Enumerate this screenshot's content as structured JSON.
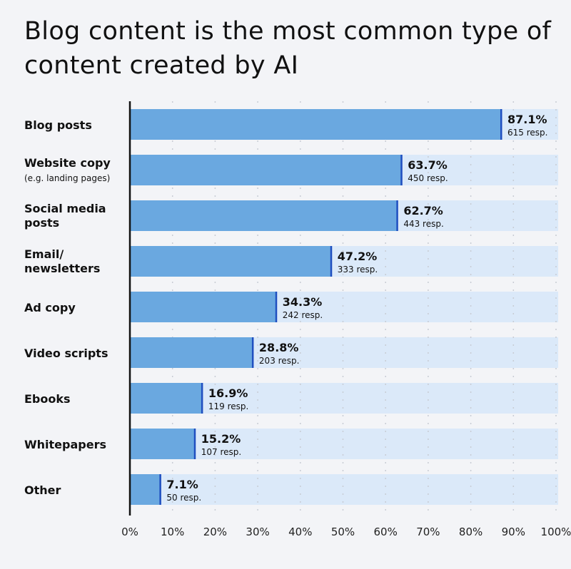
{
  "chart_data": {
    "type": "bar",
    "orientation": "horizontal",
    "title": "Blog content is the most common type of content created by AI",
    "categories": [
      {
        "label": "Blog posts",
        "sublabel": ""
      },
      {
        "label": "Website copy",
        "sublabel": "(e.g. landing pages)"
      },
      {
        "label": "Social media posts",
        "sublabel": ""
      },
      {
        "label": "Email/ newsletters",
        "sublabel": ""
      },
      {
        "label": "Ad copy",
        "sublabel": ""
      },
      {
        "label": "Video scripts",
        "sublabel": ""
      },
      {
        "label": "Ebooks",
        "sublabel": ""
      },
      {
        "label": "Whitepapers",
        "sublabel": ""
      },
      {
        "label": "Other",
        "sublabel": ""
      }
    ],
    "values": [
      87.1,
      63.7,
      62.7,
      47.2,
      34.3,
      28.8,
      16.9,
      15.2,
      7.1
    ],
    "value_labels": [
      "87.1%",
      "63.7%",
      "62.7%",
      "47.2%",
      "34.3%",
      "28.8%",
      "16.9%",
      "15.2%",
      "7.1%"
    ],
    "responses": [
      "615 resp.",
      "450 resp.",
      "443 resp.",
      "333 resp.",
      "242 resp.",
      "203 resp.",
      "119 resp.",
      "107 resp.",
      "50 resp."
    ],
    "xlim": [
      0,
      100
    ],
    "xticks": [
      "0%",
      "10%",
      "20%",
      "30%",
      "40%",
      "50%",
      "60%",
      "70%",
      "80%",
      "90%",
      "100%"
    ],
    "grid": true,
    "legend": "none",
    "colors": {
      "bar": "#6aa8e0",
      "track": "#dbe9f9",
      "bar_end": "#1f4fc0",
      "axis": "#111111",
      "grid": "#c8ccd4",
      "background": "#f3f4f7"
    }
  }
}
